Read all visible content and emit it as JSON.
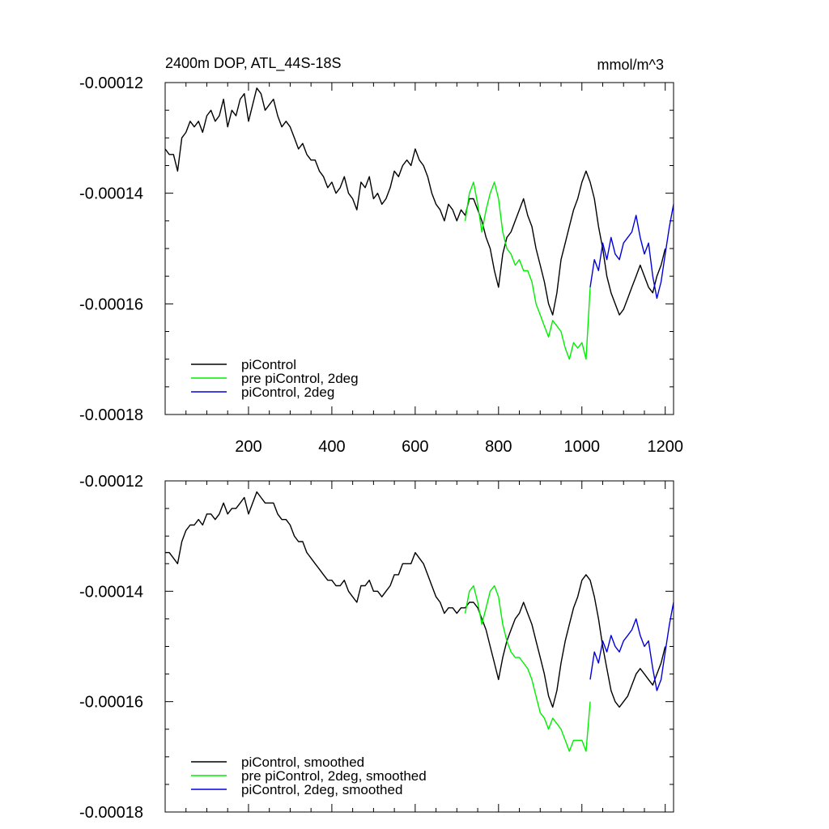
{
  "chart_data": [
    {
      "type": "line",
      "title": "2400m DOP, ATL_44S-18S",
      "units": "mmol/m^3",
      "xlim": [
        0,
        1220
      ],
      "ylim": [
        -0.00018,
        -0.00012
      ],
      "xticks": [
        200,
        400,
        600,
        800,
        1000,
        1200
      ],
      "yticks": [
        "-0.00012",
        "-0.00014",
        "-0.00016",
        "-0.00018"
      ],
      "legend_position": "bottom-left",
      "series": [
        {
          "name": "piControl",
          "color": "#000000",
          "x": [
            0,
            10,
            20,
            30,
            40,
            50,
            60,
            70,
            80,
            90,
            100,
            110,
            120,
            130,
            140,
            150,
            160,
            170,
            180,
            190,
            200,
            210,
            220,
            230,
            240,
            250,
            260,
            270,
            280,
            290,
            300,
            310,
            320,
            330,
            340,
            350,
            360,
            370,
            380,
            390,
            400,
            410,
            420,
            430,
            440,
            450,
            460,
            470,
            480,
            490,
            500,
            510,
            520,
            530,
            540,
            550,
            560,
            570,
            580,
            590,
            600,
            610,
            620,
            630,
            640,
            650,
            660,
            670,
            680,
            690,
            700,
            710,
            720,
            730,
            740,
            750,
            760,
            770,
            780,
            790,
            800,
            810,
            820,
            830,
            840,
            850,
            860,
            870,
            880,
            890,
            900,
            910,
            920,
            930,
            940,
            950,
            960,
            970,
            980,
            990,
            1000,
            1010,
            1020,
            1030,
            1040,
            1050,
            1060,
            1070,
            1080,
            1090,
            1100,
            1110,
            1120,
            1130,
            1140,
            1150,
            1160,
            1170,
            1180,
            1190,
            1200
          ],
          "y": [
            -0.000132,
            -0.000133,
            -0.000133,
            -0.000136,
            -0.00013,
            -0.000129,
            -0.000127,
            -0.000128,
            -0.000127,
            -0.000129,
            -0.000126,
            -0.000125,
            -0.000127,
            -0.000126,
            -0.000123,
            -0.000128,
            -0.000125,
            -0.000126,
            -0.000123,
            -0.000122,
            -0.000127,
            -0.000124,
            -0.000121,
            -0.000122,
            -0.000125,
            -0.000124,
            -0.000123,
            -0.000126,
            -0.000128,
            -0.000127,
            -0.000128,
            -0.00013,
            -0.000132,
            -0.000131,
            -0.000133,
            -0.000134,
            -0.000134,
            -0.000136,
            -0.000137,
            -0.000139,
            -0.000138,
            -0.00014,
            -0.000139,
            -0.000137,
            -0.00014,
            -0.000141,
            -0.000143,
            -0.000138,
            -0.000139,
            -0.000137,
            -0.000141,
            -0.00014,
            -0.000142,
            -0.000141,
            -0.000139,
            -0.000136,
            -0.000137,
            -0.000135,
            -0.000134,
            -0.000135,
            -0.000132,
            -0.000134,
            -0.000135,
            -0.000137,
            -0.00014,
            -0.000142,
            -0.000143,
            -0.000145,
            -0.000142,
            -0.000143,
            -0.000145,
            -0.000143,
            -0.000144,
            -0.000141,
            -0.000141,
            -0.000143,
            -0.000145,
            -0.000148,
            -0.00015,
            -0.000154,
            -0.000157,
            -0.000151,
            -0.000148,
            -0.000147,
            -0.000145,
            -0.000143,
            -0.000141,
            -0.000144,
            -0.000146,
            -0.00015,
            -0.000153,
            -0.000156,
            -0.00016,
            -0.000162,
            -0.000158,
            -0.000152,
            -0.000149,
            -0.000146,
            -0.000143,
            -0.000141,
            -0.000138,
            -0.000136,
            -0.000138,
            -0.000141,
            -0.000146,
            -0.00015,
            -0.000155,
            -0.000158,
            -0.00016,
            -0.000162,
            -0.000161,
            -0.000159,
            -0.000157,
            -0.000155,
            -0.000153,
            -0.000155,
            -0.000157,
            -0.000158,
            -0.000155,
            -0.000153,
            -0.00015
          ]
        },
        {
          "name": "pre piControl, 2deg",
          "color": "#00ee00",
          "x": [
            720,
            730,
            740,
            750,
            760,
            770,
            780,
            790,
            800,
            810,
            820,
            830,
            840,
            850,
            860,
            870,
            880,
            890,
            900,
            910,
            920,
            930,
            940,
            950,
            960,
            970,
            980,
            990,
            1000,
            1010,
            1020
          ],
          "y": [
            -0.000145,
            -0.00014,
            -0.000138,
            -0.000142,
            -0.000147,
            -0.000143,
            -0.00014,
            -0.000138,
            -0.000141,
            -0.000147,
            -0.00015,
            -0.000151,
            -0.000153,
            -0.000152,
            -0.000154,
            -0.000154,
            -0.000156,
            -0.00016,
            -0.000162,
            -0.000164,
            -0.000166,
            -0.000163,
            -0.000164,
            -0.000165,
            -0.000168,
            -0.00017,
            -0.000167,
            -0.000168,
            -0.000167,
            -0.00017,
            -0.000157
          ]
        },
        {
          "name": "piControl, 2deg",
          "color": "#0000dd",
          "x": [
            1020,
            1030,
            1040,
            1050,
            1060,
            1070,
            1080,
            1090,
            1100,
            1110,
            1120,
            1130,
            1140,
            1150,
            1160,
            1170,
            1180,
            1190,
            1200,
            1210,
            1220
          ],
          "y": [
            -0.000157,
            -0.000152,
            -0.000154,
            -0.000149,
            -0.000152,
            -0.000148,
            -0.000151,
            -0.000152,
            -0.000149,
            -0.000148,
            -0.000147,
            -0.000144,
            -0.000148,
            -0.000151,
            -0.000149,
            -0.000155,
            -0.000159,
            -0.000156,
            -0.000151,
            -0.000146,
            -0.000142
          ]
        }
      ]
    },
    {
      "type": "line",
      "title": "",
      "units": "",
      "xlim": [
        0,
        1220
      ],
      "ylim": [
        -0.00018,
        -0.00012
      ],
      "xticks": [
        200,
        400,
        600,
        800,
        1000,
        1200
      ],
      "yticks": [
        "-0.00012",
        "-0.00014",
        "-0.00016",
        "-0.00018"
      ],
      "legend_position": "bottom-left",
      "series": [
        {
          "name": "piControl, smoothed",
          "color": "#000000",
          "x": [
            0,
            10,
            20,
            30,
            40,
            50,
            60,
            70,
            80,
            90,
            100,
            110,
            120,
            130,
            140,
            150,
            160,
            170,
            180,
            190,
            200,
            210,
            220,
            230,
            240,
            250,
            260,
            270,
            280,
            290,
            300,
            310,
            320,
            330,
            340,
            350,
            360,
            370,
            380,
            390,
            400,
            410,
            420,
            430,
            440,
            450,
            460,
            470,
            480,
            490,
            500,
            510,
            520,
            530,
            540,
            550,
            560,
            570,
            580,
            590,
            600,
            610,
            620,
            630,
            640,
            650,
            660,
            670,
            680,
            690,
            700,
            710,
            720,
            730,
            740,
            750,
            760,
            770,
            780,
            790,
            800,
            810,
            820,
            830,
            840,
            850,
            860,
            870,
            880,
            890,
            900,
            910,
            920,
            930,
            940,
            950,
            960,
            970,
            980,
            990,
            1000,
            1010,
            1020,
            1030,
            1040,
            1050,
            1060,
            1070,
            1080,
            1090,
            1100,
            1110,
            1120,
            1130,
            1140,
            1150,
            1160,
            1170,
            1180,
            1190,
            1200
          ],
          "y": [
            -0.000133,
            -0.000133,
            -0.000134,
            -0.000135,
            -0.000131,
            -0.000129,
            -0.000128,
            -0.000128,
            -0.000127,
            -0.000128,
            -0.000126,
            -0.000126,
            -0.000127,
            -0.000126,
            -0.000124,
            -0.000126,
            -0.000125,
            -0.000125,
            -0.000124,
            -0.000123,
            -0.000126,
            -0.000124,
            -0.000122,
            -0.000123,
            -0.000124,
            -0.000124,
            -0.000124,
            -0.000126,
            -0.000127,
            -0.000127,
            -0.000128,
            -0.00013,
            -0.000131,
            -0.000131,
            -0.000133,
            -0.000134,
            -0.000135,
            -0.000136,
            -0.000137,
            -0.000138,
            -0.000138,
            -0.000139,
            -0.000139,
            -0.000138,
            -0.00014,
            -0.000141,
            -0.000142,
            -0.000139,
            -0.000139,
            -0.000138,
            -0.00014,
            -0.00014,
            -0.000141,
            -0.00014,
            -0.000139,
            -0.000137,
            -0.000137,
            -0.000135,
            -0.000135,
            -0.000135,
            -0.000133,
            -0.000134,
            -0.000135,
            -0.000137,
            -0.000139,
            -0.000141,
            -0.000142,
            -0.000144,
            -0.000143,
            -0.000143,
            -0.000144,
            -0.000143,
            -0.000143,
            -0.000142,
            -0.000142,
            -0.000143,
            -0.000145,
            -0.000147,
            -0.00015,
            -0.000153,
            -0.000156,
            -0.000152,
            -0.000149,
            -0.000147,
            -0.000145,
            -0.000144,
            -0.000142,
            -0.000144,
            -0.000146,
            -0.000149,
            -0.000152,
            -0.000155,
            -0.000159,
            -0.000161,
            -0.000158,
            -0.000153,
            -0.000149,
            -0.000146,
            -0.000143,
            -0.000141,
            -0.000138,
            -0.000137,
            -0.000138,
            -0.000141,
            -0.000145,
            -0.00015,
            -0.000154,
            -0.000158,
            -0.00016,
            -0.000161,
            -0.00016,
            -0.000159,
            -0.000157,
            -0.000155,
            -0.000154,
            -0.000155,
            -0.000156,
            -0.000157,
            -0.000155,
            -0.000153,
            -0.00015
          ]
        },
        {
          "name": "pre piControl, 2deg, smoothed",
          "color": "#00ee00",
          "x": [
            720,
            730,
            740,
            750,
            760,
            770,
            780,
            790,
            800,
            810,
            820,
            830,
            840,
            850,
            860,
            870,
            880,
            890,
            900,
            910,
            920,
            930,
            940,
            950,
            960,
            970,
            980,
            990,
            1000,
            1010,
            1020
          ],
          "y": [
            -0.000144,
            -0.00014,
            -0.000139,
            -0.000142,
            -0.000146,
            -0.000143,
            -0.00014,
            -0.000139,
            -0.000141,
            -0.000146,
            -0.000149,
            -0.000151,
            -0.000152,
            -0.000152,
            -0.000153,
            -0.000154,
            -0.000156,
            -0.000159,
            -0.000162,
            -0.000163,
            -0.000165,
            -0.000163,
            -0.000164,
            -0.000165,
            -0.000167,
            -0.000169,
            -0.000167,
            -0.000167,
            -0.000167,
            -0.000169,
            -0.00016
          ]
        },
        {
          "name": "piControl, 2deg, smoothed",
          "color": "#0000dd",
          "x": [
            1020,
            1030,
            1040,
            1050,
            1060,
            1070,
            1080,
            1090,
            1100,
            1110,
            1120,
            1130,
            1140,
            1150,
            1160,
            1170,
            1180,
            1190,
            1200,
            1210,
            1220
          ],
          "y": [
            -0.000156,
            -0.000151,
            -0.000153,
            -0.000149,
            -0.000151,
            -0.000148,
            -0.00015,
            -0.000151,
            -0.000149,
            -0.000148,
            -0.000147,
            -0.000145,
            -0.000148,
            -0.00015,
            -0.000149,
            -0.000154,
            -0.000158,
            -0.000156,
            -0.000151,
            -0.000146,
            -0.000142
          ]
        }
      ]
    }
  ]
}
